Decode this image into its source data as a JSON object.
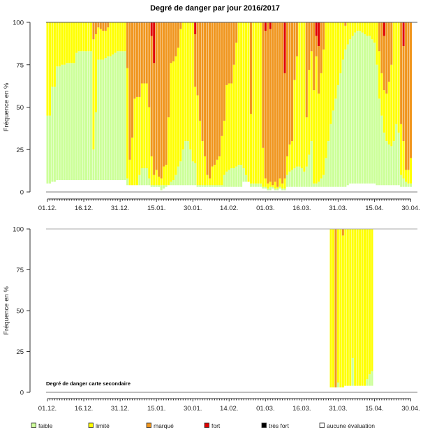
{
  "chart_data": [
    {
      "type": "bar",
      "stacked": true,
      "title": "Degré de danger par jour 2016/2017",
      "ylabel": "Fréquence en %",
      "ylim": [
        0,
        100
      ],
      "yticks": [
        "0",
        "25",
        "50",
        "75",
        "100"
      ],
      "x_range": [
        "01.12.2016",
        "30.04.2017"
      ],
      "xtick_labels": [
        "01.12.",
        "16.12.",
        "31.12.",
        "15.01.",
        "30.01.",
        "14.02.",
        "01.03.",
        "16.03.",
        "31.03.",
        "15.04.",
        "30.04."
      ],
      "series_order": [
        "aucune évaluation",
        "faible",
        "limité",
        "marqué",
        "fort",
        "très fort"
      ],
      "daily_values_order": [
        "aucune évaluation",
        "faible",
        "limité",
        "marqué",
        "fort"
      ],
      "daily_values": [
        [
          5,
          40,
          55,
          0,
          0
        ],
        [
          5,
          40,
          55,
          0,
          0
        ],
        [
          6,
          56,
          38,
          0,
          0
        ],
        [
          6,
          56,
          38,
          0,
          0
        ],
        [
          7,
          67,
          26,
          0,
          0
        ],
        [
          7,
          67,
          26,
          0,
          0
        ],
        [
          7,
          68,
          25,
          0,
          0
        ],
        [
          7,
          68,
          25,
          0,
          0
        ],
        [
          7,
          69,
          24,
          0,
          0
        ],
        [
          7,
          69,
          24,
          0,
          0
        ],
        [
          7,
          69,
          24,
          0,
          0
        ],
        [
          7,
          69,
          24,
          0,
          0
        ],
        [
          7,
          75,
          18,
          0,
          0
        ],
        [
          7,
          76,
          17,
          0,
          0
        ],
        [
          7,
          76,
          17,
          0,
          0
        ],
        [
          7,
          76,
          17,
          0,
          0
        ],
        [
          7,
          76,
          17,
          0,
          0
        ],
        [
          7,
          76,
          17,
          0,
          0
        ],
        [
          7,
          76,
          17,
          0,
          0
        ],
        [
          7,
          18,
          65,
          10,
          0
        ],
        [
          7,
          40,
          46,
          7,
          0
        ],
        [
          7,
          71,
          19,
          3,
          0
        ],
        [
          7,
          71,
          18,
          4,
          0
        ],
        [
          7,
          71,
          17,
          5,
          0
        ],
        [
          7,
          72,
          16,
          5,
          0
        ],
        [
          7,
          73,
          17,
          3,
          0
        ],
        [
          7,
          73,
          20,
          0,
          0
        ],
        [
          7,
          74,
          19,
          0,
          0
        ],
        [
          7,
          75,
          18,
          0,
          0
        ],
        [
          7,
          76,
          17,
          0,
          0
        ],
        [
          7,
          76,
          17,
          0,
          0
        ],
        [
          7,
          76,
          17,
          0,
          0
        ],
        [
          7,
          76,
          17,
          0,
          0
        ],
        [
          4,
          4,
          65,
          27,
          0
        ],
        [
          4,
          0,
          15,
          81,
          0
        ],
        [
          4,
          0,
          28,
          68,
          0
        ],
        [
          4,
          0,
          51,
          45,
          0
        ],
        [
          4,
          0,
          52,
          44,
          0
        ],
        [
          4,
          6,
          46,
          44,
          0
        ],
        [
          4,
          10,
          50,
          36,
          0
        ],
        [
          4,
          10,
          50,
          36,
          0
        ],
        [
          4,
          10,
          50,
          36,
          0
        ],
        [
          4,
          4,
          42,
          50,
          0
        ],
        [
          3,
          1,
          17,
          71,
          8
        ],
        [
          3,
          1,
          6,
          66,
          24
        ],
        [
          3,
          1,
          9,
          87,
          0
        ],
        [
          3,
          1,
          5,
          91,
          0
        ],
        [
          1,
          3,
          4,
          92,
          0
        ],
        [
          2,
          2,
          11,
          85,
          0
        ],
        [
          3,
          1,
          12,
          84,
          0
        ],
        [
          4,
          0,
          40,
          56,
          0
        ],
        [
          4,
          2,
          70,
          24,
          0
        ],
        [
          4,
          3,
          70,
          23,
          0
        ],
        [
          4,
          6,
          70,
          20,
          0
        ],
        [
          4,
          11,
          70,
          15,
          0
        ],
        [
          4,
          14,
          78,
          4,
          0
        ],
        [
          4,
          21,
          75,
          0,
          0
        ],
        [
          4,
          26,
          70,
          0,
          0
        ],
        [
          4,
          26,
          70,
          0,
          0
        ],
        [
          4,
          21,
          75,
          0,
          0
        ],
        [
          4,
          14,
          82,
          0,
          0
        ],
        [
          4,
          13,
          45,
          31,
          7
        ],
        [
          3,
          1,
          53,
          43,
          0
        ],
        [
          3,
          1,
          38,
          58,
          0
        ],
        [
          3,
          1,
          26,
          70,
          0
        ],
        [
          3,
          1,
          17,
          79,
          0
        ],
        [
          3,
          1,
          6,
          90,
          0
        ],
        [
          3,
          1,
          4,
          92,
          0
        ],
        [
          3,
          1,
          11,
          85,
          0
        ],
        [
          3,
          1,
          12,
          84,
          0
        ],
        [
          3,
          1,
          15,
          81,
          0
        ],
        [
          3,
          1,
          17,
          79,
          0
        ],
        [
          3,
          1,
          29,
          67,
          0
        ],
        [
          3,
          7,
          32,
          58,
          0
        ],
        [
          3,
          9,
          51,
          37,
          0
        ],
        [
          3,
          10,
          51,
          36,
          0
        ],
        [
          3,
          11,
          50,
          36,
          0
        ],
        [
          3,
          11,
          61,
          25,
          0
        ],
        [
          3,
          12,
          73,
          12,
          0
        ],
        [
          3,
          13,
          84,
          0,
          0
        ],
        [
          3,
          13,
          84,
          0,
          0
        ],
        [
          6,
          8,
          86,
          0,
          0
        ],
        [
          6,
          4,
          90,
          0,
          0
        ],
        [
          6,
          0,
          94,
          0,
          0
        ],
        [
          3,
          2,
          41,
          54,
          0
        ],
        [
          3,
          2,
          95,
          0,
          0
        ],
        [
          3,
          2,
          95,
          0,
          0
        ],
        [
          3,
          2,
          95,
          0,
          0
        ],
        [
          3,
          2,
          95,
          0,
          0
        ],
        [
          2,
          1,
          23,
          74,
          0
        ],
        [
          2,
          1,
          5,
          87,
          5
        ],
        [
          1,
          1,
          3,
          95,
          0
        ],
        [
          1,
          2,
          3,
          90,
          4
        ],
        [
          2,
          1,
          1,
          96,
          0
        ],
        [
          1,
          1,
          4,
          94,
          0
        ],
        [
          1,
          1,
          1,
          97,
          0
        ],
        [
          2,
          1,
          5,
          92,
          0
        ],
        [
          1,
          1,
          3,
          95,
          0
        ],
        [
          1,
          1,
          6,
          62,
          30
        ],
        [
          3,
          7,
          11,
          79,
          0
        ],
        [
          3,
          9,
          16,
          72,
          0
        ],
        [
          3,
          10,
          17,
          70,
          0
        ],
        [
          3,
          11,
          52,
          34,
          0
        ],
        [
          3,
          12,
          65,
          20,
          0
        ],
        [
          3,
          12,
          85,
          0,
          0
        ],
        [
          3,
          11,
          86,
          0,
          0
        ],
        [
          3,
          9,
          88,
          0,
          0
        ],
        [
          3,
          12,
          29,
          56,
          0
        ],
        [
          3,
          19,
          50,
          28,
          0
        ],
        [
          3,
          27,
          53,
          17,
          0
        ],
        [
          3,
          2,
          55,
          40,
          0
        ],
        [
          3,
          2,
          75,
          12,
          8
        ],
        [
          3,
          3,
          52,
          28,
          14
        ],
        [
          3,
          5,
          62,
          30,
          0
        ],
        [
          3,
          7,
          74,
          16,
          0
        ],
        [
          3,
          17,
          80,
          0,
          0
        ],
        [
          3,
          27,
          70,
          0,
          0
        ],
        [
          3,
          37,
          60,
          0,
          0
        ],
        [
          3,
          45,
          52,
          0,
          0
        ],
        [
          3,
          52,
          45,
          0,
          0
        ],
        [
          3,
          60,
          37,
          0,
          0
        ],
        [
          3,
          67,
          30,
          0,
          0
        ],
        [
          3,
          75,
          22,
          0,
          0
        ],
        [
          3,
          81,
          14,
          2,
          0
        ],
        [
          4,
          83,
          13,
          0,
          0
        ],
        [
          5,
          85,
          10,
          0,
          0
        ],
        [
          5,
          87,
          8,
          0,
          0
        ],
        [
          5,
          89,
          6,
          0,
          0
        ],
        [
          5,
          90,
          5,
          0,
          0
        ],
        [
          5,
          90,
          5,
          0,
          0
        ],
        [
          5,
          89,
          6,
          0,
          0
        ],
        [
          5,
          88,
          7,
          0,
          0
        ],
        [
          5,
          87,
          8,
          0,
          0
        ],
        [
          5,
          87,
          8,
          0,
          0
        ],
        [
          5,
          85,
          10,
          0,
          0
        ],
        [
          5,
          83,
          12,
          0,
          0
        ],
        [
          4,
          71,
          25,
          0,
          0
        ],
        [
          4,
          51,
          28,
          17,
          0
        ],
        [
          4,
          41,
          25,
          30,
          0
        ],
        [
          4,
          31,
          25,
          32,
          8
        ],
        [
          4,
          26,
          28,
          42,
          0
        ],
        [
          4,
          24,
          37,
          35,
          0
        ],
        [
          4,
          23,
          48,
          25,
          0
        ],
        [
          4,
          26,
          70,
          0,
          0
        ],
        [
          4,
          36,
          60,
          0,
          0
        ],
        [
          4,
          31,
          65,
          0,
          0
        ],
        [
          3,
          7,
          30,
          60,
          0
        ],
        [
          3,
          5,
          22,
          56,
          14
        ],
        [
          3,
          3,
          7,
          87,
          0
        ],
        [
          3,
          2,
          8,
          87,
          0
        ],
        [
          3,
          2,
          15,
          80,
          0
        ]
      ]
    },
    {
      "type": "bar",
      "stacked": true,
      "title": "Degré de danger carte secondaire",
      "ylabel": "Fréquence en %",
      "ylim": [
        0,
        100
      ],
      "yticks": [
        "0",
        "25",
        "50",
        "75",
        "100"
      ],
      "x_range": [
        "01.12.2016",
        "30.04.2017"
      ],
      "xtick_labels": [
        "01.12.",
        "16.12.",
        "31.12.",
        "15.01.",
        "30.01.",
        "14.02.",
        "01.03.",
        "16.03.",
        "31.03.",
        "15.04.",
        "30.04."
      ],
      "daily_values_order": [
        "aucune évaluation",
        "faible",
        "limité",
        "marqué",
        "fort"
      ],
      "days": [
        {
          "date": "28.03.",
          "values": [
            3,
            0,
            97,
            0,
            0
          ]
        },
        {
          "date": "29.03.",
          "values": [
            3,
            0,
            97,
            0,
            0
          ]
        },
        {
          "date": "30.03.",
          "values": [
            3,
            0,
            0,
            97,
            0
          ]
        },
        {
          "date": "31.03.",
          "values": [
            3,
            3,
            94,
            0,
            0
          ]
        },
        {
          "date": "01.04.",
          "values": [
            3,
            0,
            97,
            0,
            0
          ]
        },
        {
          "date": "02.04.",
          "values": [
            3,
            0,
            93,
            4,
            0
          ]
        },
        {
          "date": "03.04.",
          "values": [
            4,
            0,
            96,
            0,
            0
          ]
        },
        {
          "date": "04.04.",
          "values": [
            4,
            0,
            96,
            0,
            0
          ]
        },
        {
          "date": "05.04.",
          "values": [
            4,
            0,
            96,
            0,
            0
          ]
        },
        {
          "date": "06.04.",
          "values": [
            4,
            17,
            79,
            0,
            0
          ]
        },
        {
          "date": "07.04.",
          "values": [
            4,
            0,
            96,
            0,
            0
          ]
        },
        {
          "date": "08.04.",
          "values": [
            4,
            0,
            96,
            0,
            0
          ]
        },
        {
          "date": "09.04.",
          "values": [
            4,
            0,
            96,
            0,
            0
          ]
        },
        {
          "date": "10.04.",
          "values": [
            4,
            0,
            96,
            0,
            0
          ]
        },
        {
          "date": "11.04.",
          "values": [
            4,
            0,
            96,
            0,
            0
          ]
        },
        {
          "date": "12.04.",
          "values": [
            4,
            4,
            92,
            0,
            0
          ]
        },
        {
          "date": "13.04.",
          "values": [
            4,
            7,
            89,
            0,
            0
          ]
        },
        {
          "date": "14.04.",
          "values": [
            4,
            9,
            87,
            0,
            0
          ]
        }
      ]
    }
  ],
  "legend": {
    "position": "bottom",
    "items": [
      {
        "label": "faible",
        "color": "#ccff99"
      },
      {
        "label": "limité",
        "color": "#ffff00"
      },
      {
        "label": "marqué",
        "color": "#f0961e"
      },
      {
        "label": "fort",
        "color": "#e00000"
      },
      {
        "label": "très fort",
        "color": "#000000"
      },
      {
        "label": "aucune évaluation",
        "color": "#ffffff"
      }
    ]
  },
  "segment_colors": [
    "#ffffff",
    "#ccff99",
    "#ffff00",
    "#f0961e",
    "#e00000",
    "#000000"
  ]
}
